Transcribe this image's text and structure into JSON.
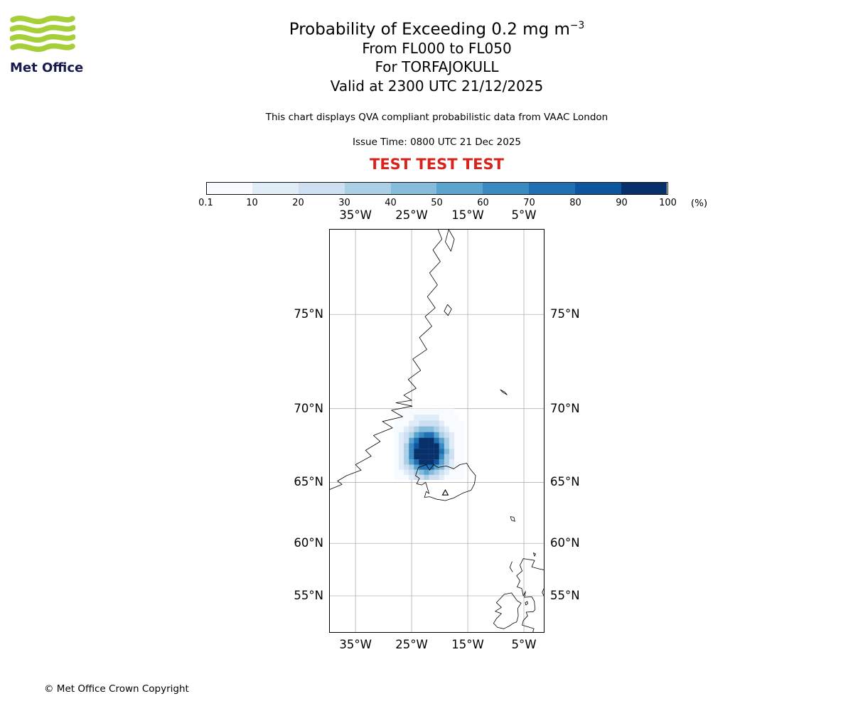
{
  "branding": {
    "logo_text": "Met Office",
    "logo_green": "#a6ce39",
    "logo_navy": "#161a4e"
  },
  "header": {
    "title_main": "Probability of Exceeding 0.2 mg m",
    "title_exponent": "−3",
    "line_flight_levels": "From FL000 to FL050",
    "line_volcano": "For TORFAJOKULL",
    "line_valid": "Valid at 2300 UTC 21/12/2025",
    "description": "This chart displays QVA compliant probabilistic data from VAAC London",
    "issue_time": "Issue Time: 0800 UTC 21 Dec 2025",
    "test_banner": "TEST TEST TEST",
    "test_banner_color": "#d8231d"
  },
  "colorbar": {
    "unit": "(%)",
    "tick_labels": [
      "0.1",
      "10",
      "20",
      "30",
      "40",
      "50",
      "60",
      "70",
      "80",
      "90",
      "100"
    ],
    "thresholds": [
      0.1,
      10,
      20,
      30,
      40,
      50,
      60,
      70,
      80,
      90,
      100
    ],
    "colors": [
      "#f7fbff",
      "#e0ecf7",
      "#cddff1",
      "#abd0e6",
      "#85bcdb",
      "#5ca4d0",
      "#3a8ac2",
      "#2070b4",
      "#0c56a0",
      "#08306b"
    ]
  },
  "map": {
    "grid_color": "#b0b0b0",
    "extent": {
      "lon_min": -39.7,
      "lon_max": -1.33,
      "lat_min": 51.05,
      "lat_max": 78.47
    },
    "lon_ticks": [
      {
        "label": "35°W",
        "deg": -35
      },
      {
        "label": "25°W",
        "deg": -25
      },
      {
        "label": "15°W",
        "deg": -15
      },
      {
        "label": "5°W",
        "deg": -5
      }
    ],
    "lat_ticks": [
      {
        "label": "75°N",
        "deg": 75
      },
      {
        "label": "70°N",
        "deg": 70
      },
      {
        "label": "65°N",
        "deg": 65
      },
      {
        "label": "60°N",
        "deg": 60
      },
      {
        "label": "55°N",
        "deg": 55
      }
    ]
  },
  "chart_data": {
    "type": "heatmap",
    "title": "Probability of Exceeding 0.2 mg m−3",
    "layer": "From FL000 to FL050",
    "volcano_name": "TORFAJOKULL",
    "valid_time": "2300 UTC 21/12/2025",
    "issue_time": "0800 UTC 21 Dec 2025",
    "units": "%",
    "projection": "mercator",
    "lon_range": [
      -39.7,
      -1.33
    ],
    "lat_range": [
      51.05,
      78.47
    ],
    "legend_thresholds": [
      0.1,
      10,
      20,
      30,
      40,
      50,
      60,
      70,
      80,
      90,
      100
    ],
    "volcano": {
      "name": "TORFAJOKULL",
      "lon": -19.0,
      "lat": 64.2
    },
    "grid": {
      "lon_origin": -28.2,
      "dlon": 0.9,
      "lat_origin": 70.0,
      "dlat": 0.37,
      "rows": [
        [
          0,
          1,
          2,
          3,
          4,
          6,
          6,
          6,
          5,
          3,
          2,
          1,
          0,
          0
        ],
        [
          1,
          2,
          4,
          7,
          10,
          13,
          14,
          13,
          10,
          7,
          4,
          2,
          1,
          0
        ],
        [
          2,
          4,
          8,
          13,
          18,
          25,
          27,
          26,
          21,
          14,
          8,
          4,
          2,
          1
        ],
        [
          3,
          7,
          14,
          24,
          35,
          44,
          48,
          45,
          36,
          25,
          15,
          7,
          3,
          1
        ],
        [
          5,
          11,
          21,
          37,
          55,
          69,
          75,
          70,
          56,
          39,
          23,
          12,
          5,
          2
        ],
        [
          6,
          15,
          29,
          51,
          75,
          91,
          100,
          97,
          78,
          53,
          31,
          16,
          7,
          3
        ],
        [
          8,
          18,
          36,
          62,
          88,
          100,
          100,
          100,
          94,
          65,
          38,
          19,
          8,
          3
        ],
        [
          8,
          19,
          38,
          66,
          98,
          100,
          100,
          100,
          100,
          70,
          41,
          21,
          9,
          3
        ],
        [
          8,
          18,
          36,
          63,
          93,
          100,
          100,
          100,
          96,
          66,
          39,
          20,
          9,
          3
        ],
        [
          6,
          15,
          30,
          52,
          78,
          98,
          100,
          97,
          80,
          55,
          33,
          16,
          7,
          3
        ],
        [
          5,
          11,
          22,
          39,
          57,
          73,
          79,
          74,
          59,
          44,
          24,
          12,
          5,
          2
        ],
        [
          3,
          7,
          15,
          25,
          37,
          47,
          52,
          48,
          39,
          27,
          16,
          8,
          3,
          1
        ],
        [
          2,
          4,
          8,
          13,
          22,
          27,
          30,
          28,
          22,
          15,
          9,
          5,
          2,
          1
        ]
      ]
    },
    "coastlines": [
      {
        "name": "greenland",
        "closed": false,
        "pts": [
          [
            -20.6,
            78.6
          ],
          [
            -19.6,
            78.1
          ],
          [
            -21.2,
            77.7
          ],
          [
            -19.9,
            77.25
          ],
          [
            -21.8,
            76.8
          ],
          [
            -20.4,
            76.3
          ],
          [
            -22.2,
            75.8
          ],
          [
            -20.8,
            75.3
          ],
          [
            -22.6,
            74.9
          ],
          [
            -21.4,
            74.45
          ],
          [
            -23.6,
            73.9
          ],
          [
            -22.3,
            73.3
          ],
          [
            -24.8,
            72.8
          ],
          [
            -23.4,
            72.2
          ],
          [
            -25.6,
            71.7
          ],
          [
            -24.2,
            71.2
          ],
          [
            -26.4,
            70.8
          ],
          [
            -25.0,
            70.5
          ],
          [
            -27.8,
            70.35
          ],
          [
            -24.9,
            70.15
          ],
          [
            -28.6,
            69.9
          ],
          [
            -26.6,
            69.5
          ],
          [
            -30.2,
            69.2
          ],
          [
            -28.4,
            68.8
          ],
          [
            -31.8,
            68.3
          ],
          [
            -30.6,
            67.9
          ],
          [
            -33.2,
            67.3
          ],
          [
            -32.2,
            66.9
          ],
          [
            -35.0,
            66.3
          ],
          [
            -34.0,
            65.9
          ],
          [
            -36.6,
            65.5
          ],
          [
            -38.2,
            65.1
          ],
          [
            -37.4,
            64.85
          ],
          [
            -39.9,
            64.4
          ]
        ]
      },
      {
        "name": "ne-greenland-island",
        "closed": true,
        "pts": [
          [
            -18.4,
            78.45
          ],
          [
            -17.4,
            78.1
          ],
          [
            -18.0,
            77.65
          ],
          [
            -19.0,
            78.0
          ]
        ]
      },
      {
        "name": "shannon-island",
        "closed": true,
        "pts": [
          [
            -18.6,
            75.45
          ],
          [
            -17.9,
            75.25
          ],
          [
            -18.5,
            74.95
          ],
          [
            -19.2,
            75.15
          ]
        ]
      },
      {
        "name": "jan-mayen",
        "closed": true,
        "pts": [
          [
            -9.2,
            71.12
          ],
          [
            -8.4,
            70.98
          ],
          [
            -8.0,
            70.82
          ],
          [
            -8.8,
            70.98
          ]
        ]
      },
      {
        "name": "iceland",
        "closed": true,
        "pts": [
          [
            -24.3,
            65.5
          ],
          [
            -23.8,
            66.1
          ],
          [
            -22.4,
            66.3
          ],
          [
            -21.8,
            65.9
          ],
          [
            -21.1,
            66.3
          ],
          [
            -20.3,
            66.1
          ],
          [
            -18.8,
            66.2
          ],
          [
            -17.5,
            66.0
          ],
          [
            -16.4,
            66.3
          ],
          [
            -15.2,
            66.4
          ],
          [
            -14.6,
            66.0
          ],
          [
            -13.6,
            65.5
          ],
          [
            -13.8,
            64.9
          ],
          [
            -14.4,
            64.4
          ],
          [
            -15.8,
            64.2
          ],
          [
            -17.5,
            63.8
          ],
          [
            -19.0,
            63.6
          ],
          [
            -20.5,
            63.7
          ],
          [
            -21.8,
            63.9
          ],
          [
            -22.7,
            63.85
          ],
          [
            -22.4,
            64.3
          ],
          [
            -21.9,
            64.15
          ],
          [
            -22.5,
            65.0
          ],
          [
            -23.2,
            64.8
          ],
          [
            -24.1,
            64.9
          ],
          [
            -23.6,
            65.3
          ]
        ]
      },
      {
        "name": "faroe-islands",
        "closed": true,
        "pts": [
          [
            -7.4,
            62.3
          ],
          [
            -6.8,
            62.25
          ],
          [
            -6.6,
            61.9
          ],
          [
            -7.2,
            62.0
          ]
        ]
      },
      {
        "name": "outer-hebrides",
        "closed": false,
        "pts": [
          [
            -7.1,
            58.35
          ],
          [
            -7.5,
            57.8
          ],
          [
            -7.0,
            57.35
          ]
        ]
      },
      {
        "name": "orkney",
        "closed": true,
        "pts": [
          [
            -3.3,
            59.15
          ],
          [
            -2.9,
            59.05
          ],
          [
            -3.1,
            58.85
          ]
        ]
      },
      {
        "name": "great-britain",
        "closed": false,
        "pts": [
          [
            -1.3,
            57.55
          ],
          [
            -2.4,
            57.67
          ],
          [
            -3.6,
            57.85
          ],
          [
            -3.1,
            58.45
          ],
          [
            -4.5,
            58.57
          ],
          [
            -5.1,
            58.62
          ],
          [
            -5.7,
            58.0
          ],
          [
            -5.3,
            57.45
          ],
          [
            -6.3,
            57.0
          ],
          [
            -5.7,
            56.5
          ],
          [
            -6.2,
            55.9
          ],
          [
            -5.4,
            55.75
          ],
          [
            -5.1,
            55.0
          ],
          [
            -4.7,
            55.45
          ],
          [
            -4.9,
            54.85
          ],
          [
            -3.6,
            54.9
          ],
          [
            -3.15,
            54.45
          ],
          [
            -3.0,
            53.6
          ],
          [
            -3.3,
            53.35
          ],
          [
            -4.6,
            53.3
          ],
          [
            -4.35,
            52.9
          ],
          [
            -5.1,
            52.4
          ],
          [
            -5.3,
            51.9
          ],
          [
            -4.2,
            51.7
          ],
          [
            -3.2,
            51.5
          ],
          [
            -3.4,
            51.2
          ],
          [
            -3.1,
            51.0
          ]
        ]
      },
      {
        "name": "england-east-coast",
        "closed": false,
        "pts": [
          [
            -1.3,
            55.9
          ],
          [
            -1.75,
            55.35
          ],
          [
            -1.3,
            54.85
          ]
        ]
      },
      {
        "name": "isle-of-man",
        "closed": true,
        "pts": [
          [
            -4.75,
            54.3
          ],
          [
            -4.4,
            54.42
          ],
          [
            -4.3,
            54.2
          ],
          [
            -4.65,
            54.05
          ]
        ]
      },
      {
        "name": "ireland",
        "closed": true,
        "pts": [
          [
            -7.2,
            55.3
          ],
          [
            -8.5,
            55.15
          ],
          [
            -9.9,
            54.3
          ],
          [
            -9.0,
            53.8
          ],
          [
            -10.1,
            53.4
          ],
          [
            -9.0,
            53.15
          ],
          [
            -9.9,
            52.6
          ],
          [
            -10.4,
            52.1
          ],
          [
            -9.7,
            51.65
          ],
          [
            -8.6,
            51.5
          ],
          [
            -7.6,
            51.8
          ],
          [
            -6.9,
            52.1
          ],
          [
            -6.3,
            52.25
          ],
          [
            -6.0,
            52.9
          ],
          [
            -6.1,
            53.7
          ],
          [
            -5.5,
            54.25
          ],
          [
            -6.2,
            54.5
          ]
        ]
      }
    ]
  },
  "footer": {
    "copyright": "© Met Office Crown Copyright"
  }
}
